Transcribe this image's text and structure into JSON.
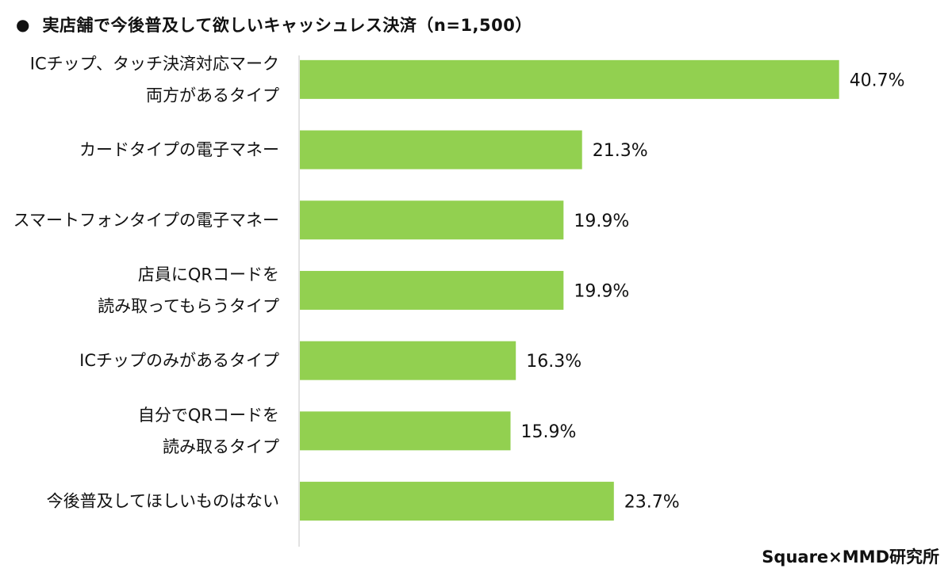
{
  "header": {
    "bullet": "●",
    "title": "実店舗で今後普及して欲しいキャッシュレス決済（n=1,500）"
  },
  "source": "Square×MMD研究所",
  "colors": {
    "bar": "#92d050",
    "axis": "#d9d9d9",
    "text": "#111111"
  },
  "chart_data": {
    "type": "bar",
    "orientation": "horizontal",
    "title": "実店舗で今後普及して欲しいキャッシュレス決済（n=1,500）",
    "categories": [
      [
        "ICチップ、タッチ決済対応マーク",
        "両方があるタイプ"
      ],
      [
        "カードタイプの電子マネー"
      ],
      [
        "スマートフォンタイプの電子マネー"
      ],
      [
        "店員にQRコードを",
        "読み取ってもらうタイプ"
      ],
      [
        "ICチップのみがあるタイプ"
      ],
      [
        "自分でQRコードを",
        "読み取るタイプ"
      ],
      [
        "今後普及してほしいものはない"
      ]
    ],
    "values": [
      40.7,
      21.3,
      19.9,
      19.9,
      16.3,
      15.9,
      23.7
    ],
    "value_labels": [
      "40.7%",
      "21.3%",
      "19.9%",
      "19.9%",
      "16.3%",
      "15.9%",
      "23.7%"
    ],
    "unit": "%",
    "xlim": [
      0,
      45
    ],
    "grid": false,
    "legend": "none"
  }
}
